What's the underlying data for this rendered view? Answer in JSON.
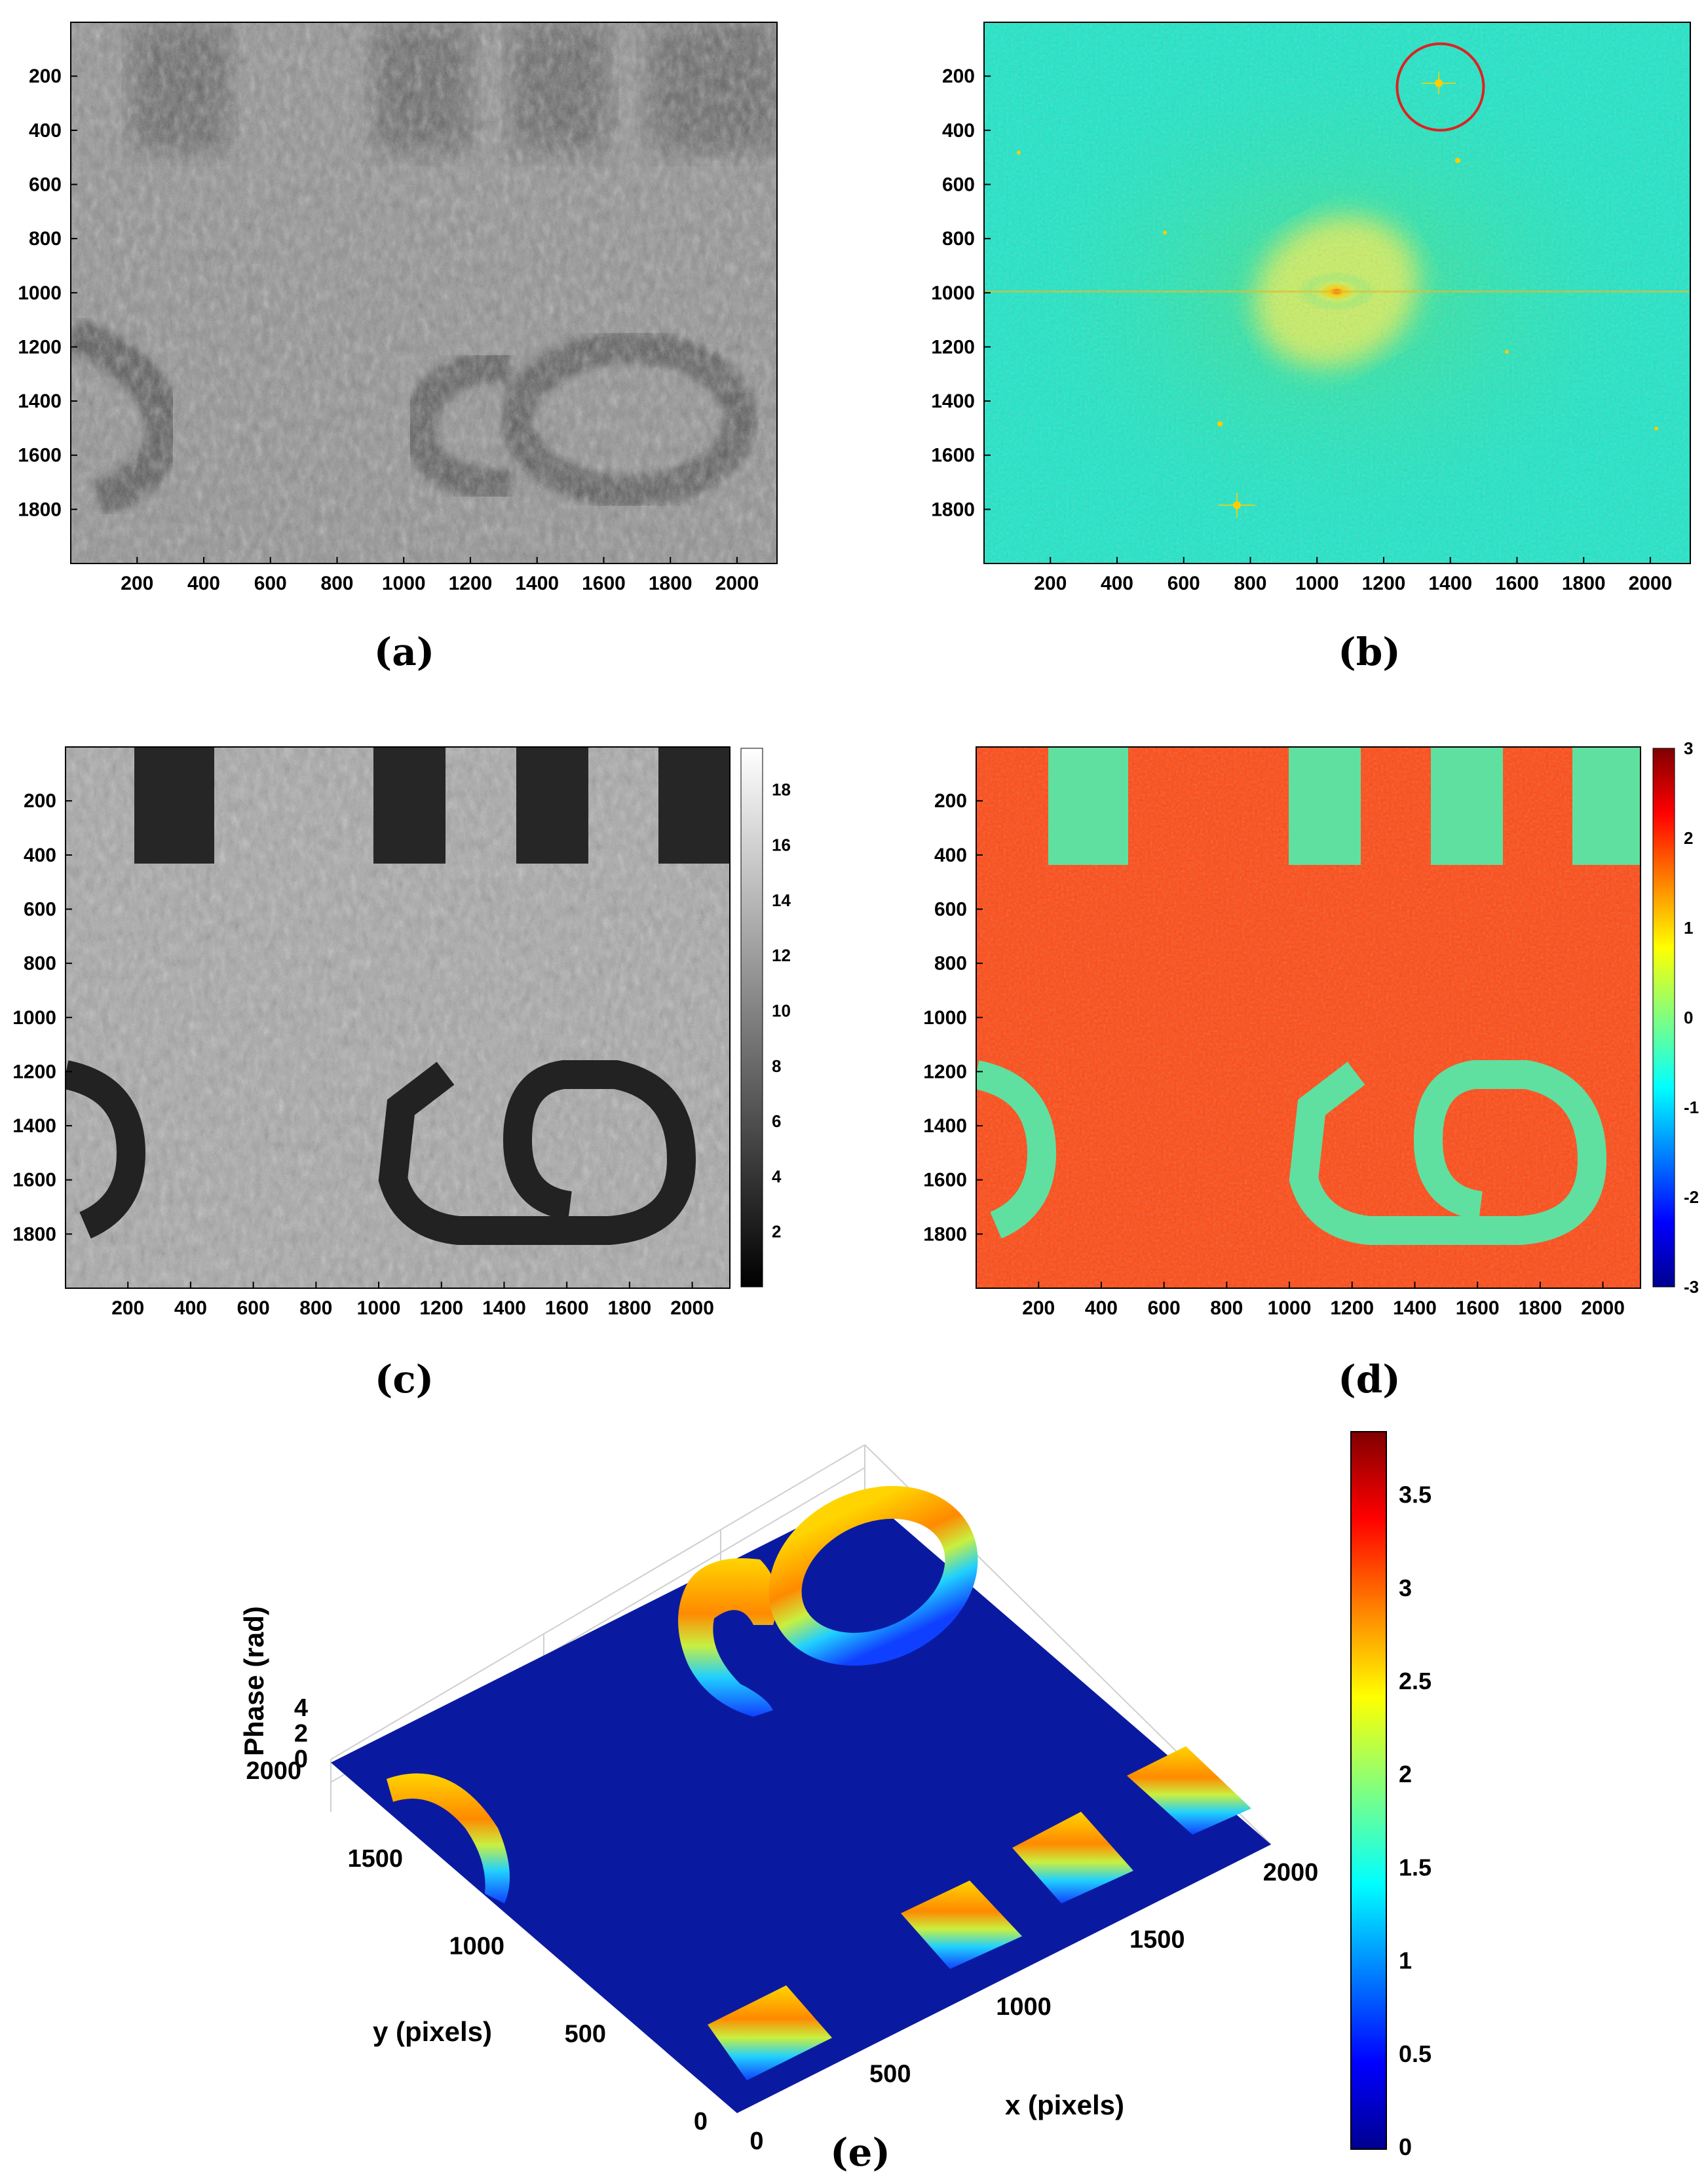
{
  "chart_data": [
    {
      "type": "heatmap",
      "panel": "(a)",
      "colormap": "gray",
      "xticks": [
        "200",
        "400",
        "600",
        "800",
        "1000",
        "1200",
        "1400",
        "1600",
        "1800",
        "2000"
      ],
      "yticks": [
        "200",
        "400",
        "600",
        "800",
        "1000",
        "1200",
        "1400",
        "1600",
        "1800"
      ],
      "xlim": [
        1,
        2120
      ],
      "ylim": [
        1,
        2000
      ]
    },
    {
      "type": "heatmap",
      "panel": "(b)",
      "colormap": "jet",
      "xticks": [
        "200",
        "400",
        "600",
        "800",
        "1000",
        "1200",
        "1400",
        "1600",
        "1800",
        "2000"
      ],
      "yticks": [
        "200",
        "400",
        "600",
        "800",
        "1000",
        "1200",
        "1400",
        "1600",
        "1800"
      ],
      "xlim": [
        1,
        2120
      ],
      "ylim": [
        1,
        2000
      ],
      "annotation": {
        "shape": "circle",
        "color": "#e02020",
        "center_data": [
          1370,
          240
        ]
      }
    },
    {
      "type": "heatmap",
      "panel": "(c)",
      "colormap": "gray",
      "xticks": [
        "200",
        "400",
        "600",
        "800",
        "1000",
        "1200",
        "1400",
        "1600",
        "1800",
        "2000"
      ],
      "yticks": [
        "200",
        "400",
        "600",
        "800",
        "1000",
        "1200",
        "1400",
        "1600",
        "1800"
      ],
      "xlim": [
        1,
        2120
      ],
      "ylim": [
        1,
        2000
      ],
      "colorbar": {
        "ticks": [
          "2",
          "4",
          "6",
          "8",
          "10",
          "12",
          "14",
          "16",
          "18"
        ],
        "range": [
          0,
          19.5
        ]
      }
    },
    {
      "type": "heatmap",
      "panel": "(d)",
      "colormap": "jet",
      "xticks": [
        "200",
        "400",
        "600",
        "800",
        "1000",
        "1200",
        "1400",
        "1600",
        "1800",
        "2000"
      ],
      "yticks": [
        "200",
        "400",
        "600",
        "800",
        "1000",
        "1200",
        "1400",
        "1600",
        "1800"
      ],
      "xlim": [
        1,
        2120
      ],
      "ylim": [
        1,
        2000
      ],
      "colorbar": {
        "ticks": [
          "3",
          "2",
          "1",
          "0",
          "-1",
          "-2",
          "-3"
        ],
        "range": [
          -3,
          3
        ]
      }
    },
    {
      "type": "surface",
      "panel": "(e)",
      "colormap": "jet",
      "xlabel": "x (pixels)",
      "ylabel": "y (pixels)",
      "zlabel": "Phase (rad)",
      "xticks": [
        "0",
        "500",
        "1000",
        "1500",
        "2000"
      ],
      "yticks": [
        "0",
        "500",
        "1000",
        "1500",
        "2000"
      ],
      "zticks": [
        "4",
        "2",
        "0"
      ],
      "colorbar": {
        "ticks": [
          "3.5",
          "3",
          "2.5",
          "2",
          "1.5",
          "1",
          "0.5",
          "0"
        ],
        "range": [
          0,
          3.85
        ]
      }
    }
  ],
  "labels": {
    "a": "(a)",
    "b": "(b)",
    "c": "(c)",
    "d": "(d)",
    "e": "(e)"
  },
  "colors": {
    "bg_jet": "#00e6c8",
    "red_circle": "#e02020",
    "phase_bg": "#ff4a14",
    "surface_floor": "#0a1aa0"
  }
}
